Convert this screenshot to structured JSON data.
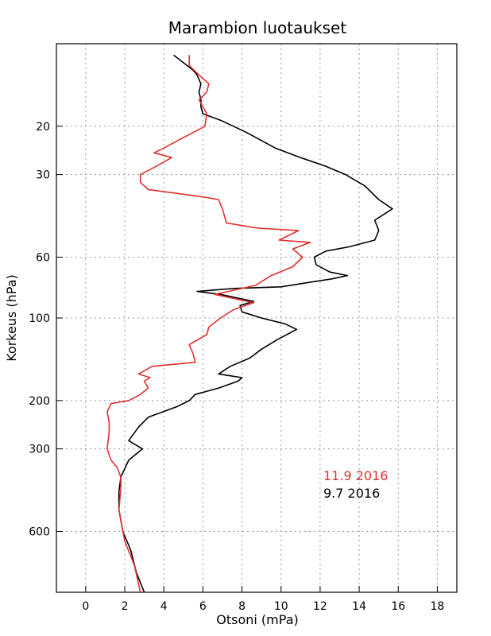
{
  "chart_data": {
    "type": "line",
    "title": "Marambion luotaukset",
    "xlabel": "Otsoni (mPa)",
    "ylabel": "Korkeus (hPa)",
    "xlim": [
      -1.5,
      19
    ],
    "ylim": [
      1000,
      10
    ],
    "y_scale": "log",
    "grid": true,
    "legend_position": "bottom-right",
    "x_ticks": [
      0,
      2,
      4,
      6,
      8,
      10,
      12,
      14,
      16,
      18
    ],
    "x_tick_labels": [
      "0",
      "2",
      "4",
      "6",
      "8",
      "10",
      "12",
      "14",
      "16",
      "18"
    ],
    "y_ticks": [
      20,
      30,
      60,
      100,
      200,
      300,
      600
    ],
    "y_tick_labels": [
      "20",
      "30",
      "60",
      "100",
      "200",
      "300",
      "600"
    ],
    "series": [
      {
        "name": "9.7 2016",
        "color": "#000000",
        "points": [
          [
            3.0,
            1000
          ],
          [
            2.6,
            850
          ],
          [
            2.3,
            700
          ],
          [
            1.9,
            600
          ],
          [
            1.7,
            500
          ],
          [
            1.7,
            430
          ],
          [
            1.8,
            380
          ],
          [
            2.2,
            330
          ],
          [
            2.9,
            300
          ],
          [
            2.2,
            280
          ],
          [
            2.7,
            250
          ],
          [
            3.2,
            230
          ],
          [
            4.7,
            210
          ],
          [
            5.3,
            200
          ],
          [
            5.6,
            190
          ],
          [
            6.8,
            180
          ],
          [
            7.8,
            170
          ],
          [
            8.0,
            165
          ],
          [
            6.8,
            160
          ],
          [
            7.4,
            150
          ],
          [
            8.4,
            140
          ],
          [
            9.0,
            130
          ],
          [
            9.8,
            120
          ],
          [
            10.8,
            110
          ],
          [
            10.2,
            105
          ],
          [
            9.0,
            100
          ],
          [
            8.0,
            95
          ],
          [
            7.9,
            90
          ],
          [
            8.6,
            87
          ],
          [
            6.9,
            82
          ],
          [
            5.7,
            80
          ],
          [
            7.6,
            78
          ],
          [
            10.0,
            77
          ],
          [
            11.0,
            75
          ],
          [
            12.6,
            72
          ],
          [
            13.4,
            70
          ],
          [
            12.5,
            68
          ],
          [
            11.8,
            64
          ],
          [
            11.7,
            60
          ],
          [
            12.3,
            57
          ],
          [
            13.5,
            55
          ],
          [
            14.8,
            52
          ],
          [
            15.0,
            48
          ],
          [
            14.8,
            44
          ],
          [
            15.7,
            40
          ],
          [
            15.0,
            37
          ],
          [
            14.3,
            33
          ],
          [
            13.3,
            30
          ],
          [
            12.3,
            28
          ],
          [
            11.0,
            26
          ],
          [
            9.7,
            24
          ],
          [
            8.2,
            21
          ],
          [
            6.9,
            19
          ],
          [
            6.0,
            18
          ],
          [
            5.9,
            17
          ],
          [
            5.9,
            16
          ],
          [
            5.8,
            15
          ],
          [
            5.9,
            14
          ],
          [
            5.7,
            13
          ],
          [
            5.5,
            12.5
          ],
          [
            4.5,
            11
          ]
        ]
      },
      {
        "name": "11.9 2016",
        "color": "#e03030",
        "points": [
          [
            2.8,
            1000
          ],
          [
            2.5,
            800
          ],
          [
            2.0,
            650
          ],
          [
            1.9,
            600
          ],
          [
            1.7,
            500
          ],
          [
            1.8,
            420
          ],
          [
            1.8,
            380
          ],
          [
            1.6,
            350
          ],
          [
            1.3,
            330
          ],
          [
            1.1,
            300
          ],
          [
            1.2,
            260
          ],
          [
            1.2,
            240
          ],
          [
            1.1,
            220
          ],
          [
            1.3,
            205
          ],
          [
            2.2,
            200
          ],
          [
            2.8,
            190
          ],
          [
            3.2,
            180
          ],
          [
            3.0,
            170
          ],
          [
            3.3,
            165
          ],
          [
            2.7,
            160
          ],
          [
            3.4,
            150
          ],
          [
            5.6,
            145
          ],
          [
            5.5,
            135
          ],
          [
            5.3,
            125
          ],
          [
            6.2,
            115
          ],
          [
            6.3,
            108
          ],
          [
            6.9,
            100
          ],
          [
            7.6,
            93
          ],
          [
            8.6,
            88
          ],
          [
            7.6,
            85
          ],
          [
            6.6,
            82
          ],
          [
            7.3,
            80
          ],
          [
            8.7,
            76
          ],
          [
            9.5,
            70
          ],
          [
            10.6,
            65
          ],
          [
            11.1,
            60
          ],
          [
            10.6,
            56
          ],
          [
            11.5,
            53
          ],
          [
            9.9,
            52
          ],
          [
            10.9,
            48
          ],
          [
            8.8,
            47
          ],
          [
            7.2,
            45
          ],
          [
            7.0,
            40
          ],
          [
            6.8,
            37
          ],
          [
            5.8,
            36
          ],
          [
            3.2,
            34
          ],
          [
            2.8,
            32
          ],
          [
            2.8,
            30
          ],
          [
            3.6,
            28
          ],
          [
            4.4,
            26
          ],
          [
            3.5,
            25
          ],
          [
            4.0,
            24
          ],
          [
            5.0,
            22
          ],
          [
            6.1,
            20
          ],
          [
            6.2,
            18
          ],
          [
            5.8,
            16
          ],
          [
            6.2,
            15
          ],
          [
            6.3,
            14
          ],
          [
            5.8,
            13
          ],
          [
            5.3,
            12
          ],
          [
            5.3,
            11
          ]
        ]
      }
    ]
  }
}
